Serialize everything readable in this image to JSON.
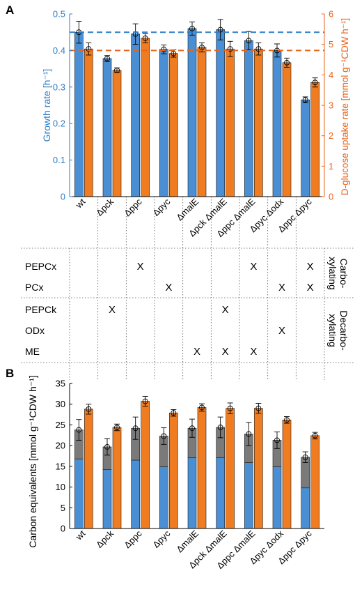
{
  "colors": {
    "blue": "#4a8fd4",
    "orange": "#f07c22",
    "gray": "#7a7a7a",
    "blue_axis": "#2f7ec8",
    "orange_axis": "#e8641a"
  },
  "panel_a": {
    "label": "A",
    "y_left_label": "Growth rate [h⁻¹]",
    "y_right_label": "D-glucose uptake rate [mmol g⁻¹CDW h⁻¹]",
    "y_left_ticks": [
      "0",
      "0.1",
      "0.2",
      "0.3",
      "0.4",
      "0.5"
    ],
    "y_right_ticks": [
      "0",
      "1",
      "2",
      "3",
      "4",
      "5",
      "6"
    ]
  },
  "panel_b": {
    "label": "B",
    "y_label": "Carbon equivalents [mmol g⁻¹CDW h⁻¹]",
    "y_ticks": [
      "0",
      "5",
      "10",
      "15",
      "20",
      "25",
      "30",
      "35"
    ]
  },
  "strains": [
    "wt",
    "Δpck",
    "Δppc",
    "Δpyc",
    "ΔmalE",
    "Δpck ΔmalE",
    "Δppc ΔmalE",
    "Δpyc Δodx",
    "Δppc Δpyc"
  ],
  "table": {
    "rows": [
      "PEPCx",
      "PCx",
      "PEPCk",
      "ODx",
      "ME"
    ],
    "mark": "X",
    "group_carboxylating": [
      "Carbo-",
      "xylating"
    ],
    "group_decarboxylating": [
      "Decarbo-",
      "xylating"
    ],
    "marks": [
      [
        2,
        6,
        8
      ],
      [
        3,
        7,
        8
      ],
      [
        1,
        5
      ],
      [
        7
      ],
      [
        4,
        5,
        6
      ]
    ]
  },
  "chart_data": [
    {
      "type": "bar",
      "panel": "A",
      "categories": [
        "wt",
        "Δpck",
        "Δppc",
        "Δpyc",
        "ΔmalE",
        "Δpck ΔmalE",
        "Δppc ΔmalE",
        "Δpyc Δodx",
        "Δppc Δpyc"
      ],
      "ylabel": "Growth rate [h⁻¹]",
      "y2label": "D-glucose uptake rate [mmol g⁻¹CDW h⁻¹]",
      "ylim": [
        0,
        0.5
      ],
      "y2lim": [
        0,
        6
      ],
      "series": [
        {
          "axis": "left",
          "values": [
            0.45,
            0.378,
            0.445,
            0.403,
            0.46,
            0.457,
            0.427,
            0.4,
            0.265
          ],
          "errors": [
            0.03,
            0.008,
            0.028,
            0.012,
            0.018,
            0.028,
            0.025,
            0.018,
            0.008
          ]
        },
        {
          "axis": "right",
          "values": [
            4.85,
            4.15,
            5.2,
            4.7,
            4.9,
            4.85,
            4.85,
            4.4,
            3.75
          ],
          "errors": [
            0.2,
            0.08,
            0.15,
            0.12,
            0.15,
            0.25,
            0.2,
            0.15,
            0.15
          ]
        }
      ],
      "hlines": [
        {
          "axis": "left",
          "value": 0.45,
          "color": "#2f7ec8",
          "style": "dashed"
        },
        {
          "axis": "right",
          "value": 4.8,
          "color": "#e8641a",
          "style": "dashed"
        }
      ]
    },
    {
      "type": "bar",
      "panel": "B",
      "stacked": true,
      "categories": [
        "wt",
        "Δpck",
        "Δppc",
        "Δpyc",
        "ΔmalE",
        "Δpck ΔmalE",
        "Δppc ΔmalE",
        "Δpyc Δodx",
        "Δppc Δpyc"
      ],
      "ylabel": "Carbon equivalents [mmol g⁻¹CDW h⁻¹]",
      "ylim": [
        0,
        35
      ],
      "series": [
        {
          "stack": "left",
          "color": "#4a8fd4",
          "values": [
            16.8,
            14.2,
            16.5,
            14.9,
            17.1,
            17.1,
            15.9,
            14.9,
            9.8
          ]
        },
        {
          "stack": "left",
          "color": "#7a7a7a",
          "values": [
            7.0,
            5.5,
            7.7,
            7.4,
            7.1,
            7.3,
            6.9,
            6.4,
            7.4
          ],
          "totals": [
            23.8,
            19.7,
            24.2,
            22.3,
            24.2,
            24.4,
            22.8,
            21.3,
            17.2
          ],
          "errors": [
            2.5,
            2.0,
            2.7,
            2.0,
            2.2,
            2.5,
            2.8,
            2.0,
            1.3
          ]
        },
        {
          "stack": "right",
          "color": "#f07c22",
          "values": [
            28.8,
            24.4,
            30.7,
            27.9,
            29.2,
            29.0,
            29.0,
            26.2,
            22.4
          ],
          "errors": [
            1.2,
            0.8,
            1.2,
            0.8,
            0.9,
            1.3,
            1.2,
            0.8,
            0.8
          ]
        }
      ]
    }
  ]
}
